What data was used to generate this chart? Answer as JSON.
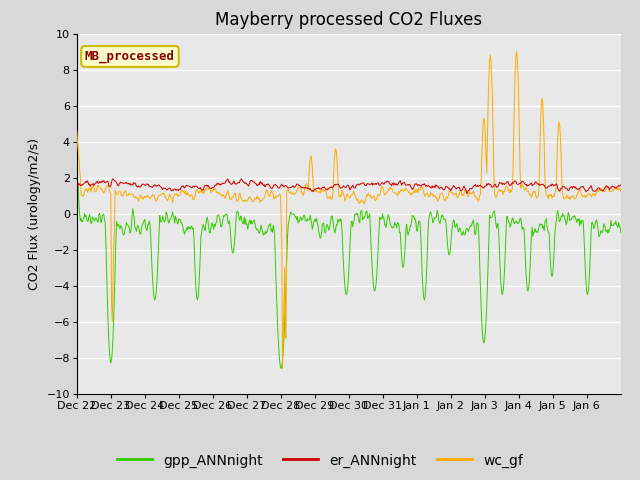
{
  "title": "Mayberry processed CO2 Fluxes",
  "ylabel": "CO2 Flux (urology/m2/s)",
  "ylim": [
    -10,
    10
  ],
  "yticks": [
    -10,
    -8,
    -6,
    -4,
    -2,
    0,
    2,
    4,
    6,
    8,
    10
  ],
  "xtick_labels": [
    "Dec 22",
    "Dec 23",
    "Dec 24",
    "Dec 25",
    "Dec 26",
    "Dec 27",
    "Dec 28",
    "Dec 29",
    "Dec 30",
    "Dec 31",
    "Jan 1",
    "Jan 2",
    "Jan 3",
    "Jan 4",
    "Jan 5",
    "Jan 6"
  ],
  "legend_labels": [
    "gpp_ANNnight",
    "er_ANNnight",
    "wc_gf"
  ],
  "line_colors": [
    "#33cc00",
    "#cc0000",
    "#ffaa00"
  ],
  "annotation_text": "MB_processed",
  "annotation_fg": "#880000",
  "annotation_bg": "#ffffcc",
  "annotation_border": "#ccbb00",
  "fig_bg": "#d8d8d8",
  "plot_bg": "#e8e8e8",
  "grid_color": "#ffffff",
  "title_fontsize": 12,
  "ylabel_fontsize": 9,
  "tick_fontsize": 8,
  "legend_fontsize": 10,
  "n_days": 16,
  "n_per_day": 48
}
